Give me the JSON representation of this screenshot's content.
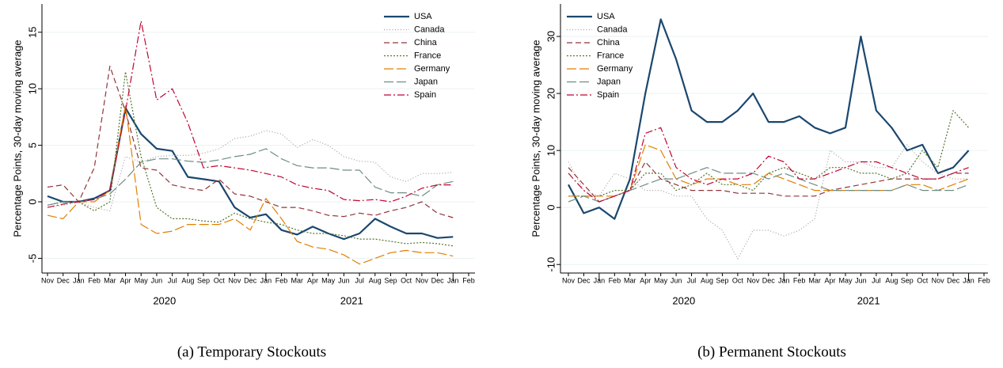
{
  "chart_data": [
    {
      "type": "line",
      "ylabel": "Percentage Points, 30-day moving average",
      "caption": "(a) Temporary Stockouts",
      "categories": [
        "Nov",
        "Dec",
        "Jan",
        "Feb",
        "Mar",
        "Apr",
        "May",
        "Jun",
        "Jul",
        "Aug",
        "Sep",
        "Oct",
        "Nov",
        "Dec",
        "Jan",
        "Feb",
        "Mar",
        "Apr",
        "May",
        "Jun",
        "Jul",
        "Aug",
        "Sep",
        "Oct",
        "Nov",
        "Dec",
        "Jan",
        "Feb"
      ],
      "years": [
        "2020",
        "2021"
      ],
      "ylim": [
        -6.3,
        17.5
      ],
      "yticks": [
        -5,
        0,
        5,
        10,
        15
      ],
      "grid": true,
      "legend": "top-right",
      "series": [
        {
          "name": "USA",
          "color": "#1a476f",
          "style": "solid",
          "values": [
            0.5,
            0,
            0,
            0.3,
            1,
            8.3,
            6,
            4.7,
            4.5,
            2.2,
            2,
            1.8,
            -0.5,
            -1.4,
            -1.1,
            -2.5,
            -2.9,
            -2.2,
            -2.8,
            -3.3,
            -2.8,
            -1.5,
            -2.2,
            -2.8,
            -2.8,
            -3.2,
            -3.1,
            null
          ]
        },
        {
          "name": "Canada",
          "color": "#a0a0a0",
          "style": "dot",
          "values": [
            -0.5,
            -0.3,
            0,
            -0.5,
            -0.8,
            4,
            3.5,
            4,
            4.1,
            4.1,
            4.3,
            4.7,
            5.6,
            5.8,
            6.3,
            6,
            4.8,
            5.5,
            5,
            4,
            3.6,
            3.5,
            2.2,
            1.8,
            2.5,
            2.5,
            2.6,
            null
          ]
        },
        {
          "name": "China",
          "color": "#90353b",
          "style": "dash",
          "values": [
            1.3,
            1.5,
            0,
            3,
            12,
            8,
            3,
            2.8,
            1.5,
            1.2,
            1,
            2,
            0.7,
            0.5,
            0,
            -0.5,
            -0.5,
            -0.8,
            -1.2,
            -1.3,
            -1,
            -1.2,
            -0.8,
            -0.5,
            0,
            -1,
            -1.4,
            null
          ]
        },
        {
          "name": "France",
          "color": "#55752f",
          "style": "shortdot",
          "values": [
            -0.3,
            0,
            0,
            -0.8,
            0,
            11.5,
            4,
            -0.5,
            -1.5,
            -1.5,
            -1.7,
            -1.8,
            -1,
            -1.5,
            -1.8,
            -2,
            -2.5,
            -2.8,
            -2.8,
            -3,
            -3.3,
            -3.3,
            -3.5,
            -3.7,
            -3.6,
            -3.7,
            -3.9,
            null
          ]
        },
        {
          "name": "Germany",
          "color": "#e37e00",
          "style": "longdash",
          "values": [
            -1.2,
            -1.5,
            0,
            0,
            1,
            8.5,
            -2,
            -2.8,
            -2.6,
            -2,
            -2,
            -2,
            -1.5,
            -2.5,
            0.3,
            -1.5,
            -3.5,
            -4,
            -4.2,
            -4.7,
            -5.5,
            -5,
            -4.5,
            -4.3,
            -4.5,
            -4.5,
            -4.8,
            null
          ]
        },
        {
          "name": "Japan",
          "color": "#6e8e84",
          "style": "longdash",
          "values": [
            -0.3,
            0,
            0,
            0.2,
            0.7,
            2,
            3.5,
            3.8,
            3.8,
            3.6,
            3.5,
            3.7,
            4,
            4.2,
            4.7,
            3.8,
            3.2,
            3,
            3,
            2.8,
            2.8,
            1.3,
            0.8,
            0.8,
            0.5,
            1.5,
            1.8,
            null
          ]
        },
        {
          "name": "Spain",
          "color": "#c10534",
          "style": "dashdot",
          "values": [
            -0.5,
            -0.2,
            0,
            0.2,
            1,
            8,
            16,
            9,
            10,
            7,
            3,
            3.2,
            3,
            2.8,
            2.5,
            2.2,
            1.5,
            1.2,
            1,
            0.2,
            0.1,
            0.2,
            0,
            0.5,
            1.2,
            1.5,
            1.5,
            null
          ]
        }
      ]
    },
    {
      "type": "line",
      "ylabel": "Percentage Points, 30-day moving average",
      "caption": "(b) Permanent Stockouts",
      "categories": [
        "Nov",
        "Dec",
        "Jan",
        "Feb",
        "Mar",
        "Apr",
        "May",
        "Jun",
        "Jul",
        "Aug",
        "Sep",
        "Oct",
        "Nov",
        "Dec",
        "Jan",
        "Feb",
        "Mar",
        "Apr",
        "May",
        "Jun",
        "Jul",
        "Aug",
        "Sep",
        "Oct",
        "Nov",
        "Dec",
        "Jan",
        "Feb"
      ],
      "years": [
        "2020",
        "2021"
      ],
      "ylim": [
        -11.5,
        35.7
      ],
      "yticks": [
        -10,
        0,
        10,
        20,
        30
      ],
      "grid": true,
      "legend": "top-left",
      "series": [
        {
          "name": "USA",
          "color": "#1a476f",
          "style": "solid",
          "values": [
            4,
            -1,
            0,
            -2,
            5,
            20,
            33,
            26,
            17,
            15,
            15,
            17,
            20,
            15,
            15,
            16,
            14,
            13,
            14,
            30,
            17,
            14,
            10,
            11,
            6,
            7,
            10,
            null
          ]
        },
        {
          "name": "Canada",
          "color": "#a0a0a0",
          "style": "dot",
          "values": [
            8,
            3,
            2,
            6,
            5,
            3,
            3,
            2,
            2,
            -2,
            -4,
            -9,
            -4,
            -4,
            -5,
            -4,
            -2,
            10,
            8,
            8,
            7,
            7,
            11,
            8,
            6,
            5,
            5,
            null
          ]
        },
        {
          "name": "China",
          "color": "#90353b",
          "style": "dash",
          "values": [
            7,
            4,
            1,
            2,
            3,
            8,
            5,
            4,
            3,
            3,
            3,
            2.5,
            2.5,
            2.5,
            2,
            2,
            2,
            3,
            3.5,
            4,
            4.5,
            5,
            5,
            5,
            5,
            6,
            6,
            null
          ]
        },
        {
          "name": "France",
          "color": "#55752f",
          "style": "shortdot",
          "values": [
            2,
            2,
            2,
            3,
            3,
            6,
            6,
            3,
            4,
            6,
            4,
            4,
            3,
            6,
            7,
            6,
            5,
            7,
            7,
            6,
            6,
            5,
            6,
            10,
            7,
            17,
            14,
            null
          ]
        },
        {
          "name": "Germany",
          "color": "#e37e00",
          "style": "longdash",
          "values": [
            2,
            2,
            2,
            2,
            3,
            11,
            10,
            5,
            4,
            5,
            5,
            4,
            4,
            6,
            5,
            4,
            3,
            3,
            3,
            3,
            3,
            3,
            4,
            4,
            3,
            4,
            5,
            null
          ]
        },
        {
          "name": "Japan",
          "color": "#6e8e84",
          "style": "longdash",
          "values": [
            1,
            2,
            1,
            2,
            3,
            4,
            5,
            5,
            6,
            7,
            6,
            6,
            6,
            5,
            6,
            5,
            4,
            3,
            3,
            3,
            3,
            3,
            4,
            3,
            3,
            3,
            4,
            null
          ]
        },
        {
          "name": "Spain",
          "color": "#c10534",
          "style": "dashdot",
          "values": [
            6,
            3,
            1,
            2,
            3,
            13,
            14,
            7,
            5,
            4,
            5,
            5,
            6,
            9,
            8,
            5,
            5,
            6,
            7,
            8,
            8,
            7,
            6,
            5,
            5,
            6,
            7,
            null
          ]
        }
      ]
    }
  ]
}
